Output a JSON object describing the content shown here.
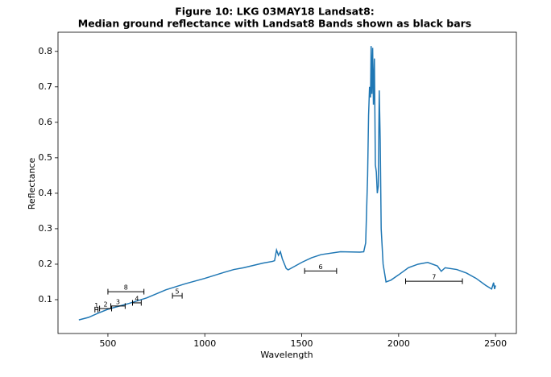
{
  "chart_data": {
    "type": "line",
    "title": "Figure 10: LKG 03MAY18  Landsat8:",
    "subtitle": "Median ground reflectance with Landsat8 Bands shown as black bars",
    "x_label": "Wavelength",
    "y_label": "Reflectance",
    "xlim": [
      242.5,
      2607.5
    ],
    "xticks": [
      500,
      1000,
      1500,
      2000,
      2500
    ],
    "ylim": [
      0.0046,
      0.854
    ],
    "yticks": [
      0.1,
      0.2,
      0.3,
      0.4,
      0.5,
      0.6,
      0.7,
      0.8
    ],
    "series": [
      {
        "color": "#1f77b4",
        "x": [
          350,
          400,
          450,
          500,
          600,
          700,
          800,
          900,
          1000,
          1100,
          1150,
          1200,
          1300,
          1350,
          1360,
          1370,
          1380,
          1390,
          1400,
          1420,
          1430,
          1450,
          1500,
          1550,
          1600,
          1700,
          1800,
          1820,
          1830,
          1840,
          1845,
          1850,
          1855,
          1858,
          1862,
          1866,
          1870,
          1875,
          1880,
          1885,
          1890,
          1895,
          1900,
          1905,
          1910,
          1920,
          1935,
          1960,
          2000,
          2050,
          2100,
          2150,
          2200,
          2220,
          2240,
          2300,
          2350,
          2400,
          2450,
          2480,
          2490,
          2495,
          2500
        ],
        "values": [
          0.043,
          0.05,
          0.062,
          0.073,
          0.088,
          0.105,
          0.128,
          0.145,
          0.16,
          0.177,
          0.185,
          0.19,
          0.203,
          0.208,
          0.21,
          0.24,
          0.225,
          0.235,
          0.215,
          0.188,
          0.184,
          0.19,
          0.205,
          0.218,
          0.227,
          0.235,
          0.234,
          0.235,
          0.26,
          0.45,
          0.62,
          0.7,
          0.67,
          0.815,
          0.68,
          0.81,
          0.65,
          0.78,
          0.48,
          0.46,
          0.4,
          0.42,
          0.69,
          0.55,
          0.3,
          0.2,
          0.15,
          0.155,
          0.17,
          0.19,
          0.2,
          0.205,
          0.195,
          0.18,
          0.19,
          0.185,
          0.175,
          0.16,
          0.14,
          0.13,
          0.148,
          0.13,
          0.14
        ]
      }
    ],
    "bands": [
      {
        "name": "1",
        "xmin": 433,
        "xmax": 449,
        "y": 0.072
      },
      {
        "name": "2",
        "xmin": 457,
        "xmax": 519,
        "y": 0.075
      },
      {
        "name": "3",
        "xmin": 515,
        "xmax": 589,
        "y": 0.082
      },
      {
        "name": "4",
        "xmin": 627,
        "xmax": 672,
        "y": 0.091
      },
      {
        "name": "5",
        "xmin": 833,
        "xmax": 883,
        "y": 0.111
      },
      {
        "name": "6",
        "xmin": 1515,
        "xmax": 1680,
        "y": 0.181
      },
      {
        "name": "7",
        "xmin": 2036,
        "xmax": 2329,
        "y": 0.152
      },
      {
        "name": "8",
        "xmin": 500,
        "xmax": 686,
        "y": 0.1225
      }
    ]
  }
}
